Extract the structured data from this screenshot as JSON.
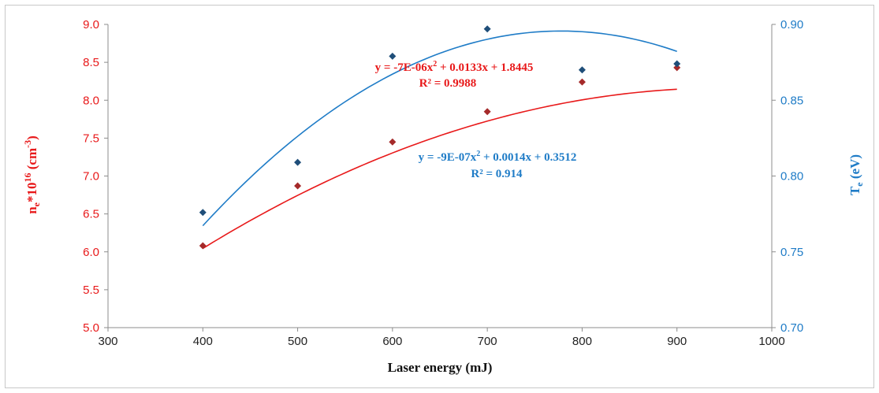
{
  "chart_data": {
    "type": "scatter",
    "xlabel": "Laser energy (mJ)",
    "xlim": [
      300,
      1000
    ],
    "x_ticks": [
      "300",
      "400",
      "500",
      "600",
      "700",
      "800",
      "900",
      "1000"
    ],
    "ylabel_left": {
      "base": "n",
      "sub": "e",
      "mid": "*10",
      "sup1": "16",
      "unit": " (cm",
      "sup2": "-3",
      "close": ")"
    },
    "ylim_left": [
      5.0,
      9.0
    ],
    "y_ticks_left": [
      "5.0",
      "5.5",
      "6.0",
      "6.5",
      "7.0",
      "7.5",
      "8.0",
      "8.5",
      "9.0"
    ],
    "ylabel_right": {
      "base": "T",
      "sub": "e",
      "unit": " (eV)"
    },
    "ylim_right": [
      0.7,
      0.9
    ],
    "y_ticks_right": [
      "0.70",
      "0.75",
      "0.80",
      "0.85",
      "0.90"
    ],
    "grid": false,
    "series": [
      {
        "axis": "left",
        "color": "#e8191a",
        "marker_color": "#a52a2a",
        "x": [
          400,
          500,
          600,
          700,
          800,
          900
        ],
        "y": [
          6.08,
          6.87,
          7.45,
          7.85,
          8.24,
          8.43
        ],
        "trendline": {
          "type": "poly2",
          "a": -7e-06,
          "b": 0.0133,
          "c": 1.8445
        },
        "equation": {
          "p1": "y = -7E-06x",
          "sup": "2",
          "p2": " + 0.0133x + 1.8445"
        },
        "r2": "R² = 0.9988"
      },
      {
        "axis": "right",
        "color": "#1f7cc7",
        "marker_color": "#1f4e79",
        "x": [
          400,
          500,
          600,
          700,
          800,
          900
        ],
        "y": [
          0.776,
          0.809,
          0.879,
          0.897,
          0.87,
          0.874
        ],
        "trendline": {
          "type": "poly2",
          "a": -9e-07,
          "b": 0.0014,
          "c": 0.3512
        },
        "equation": {
          "p1": "y = -9E-07x",
          "sup": "2",
          "p2": " + 0.0014x + 0.3512"
        },
        "r2": "R² = 0.914"
      }
    ]
  }
}
